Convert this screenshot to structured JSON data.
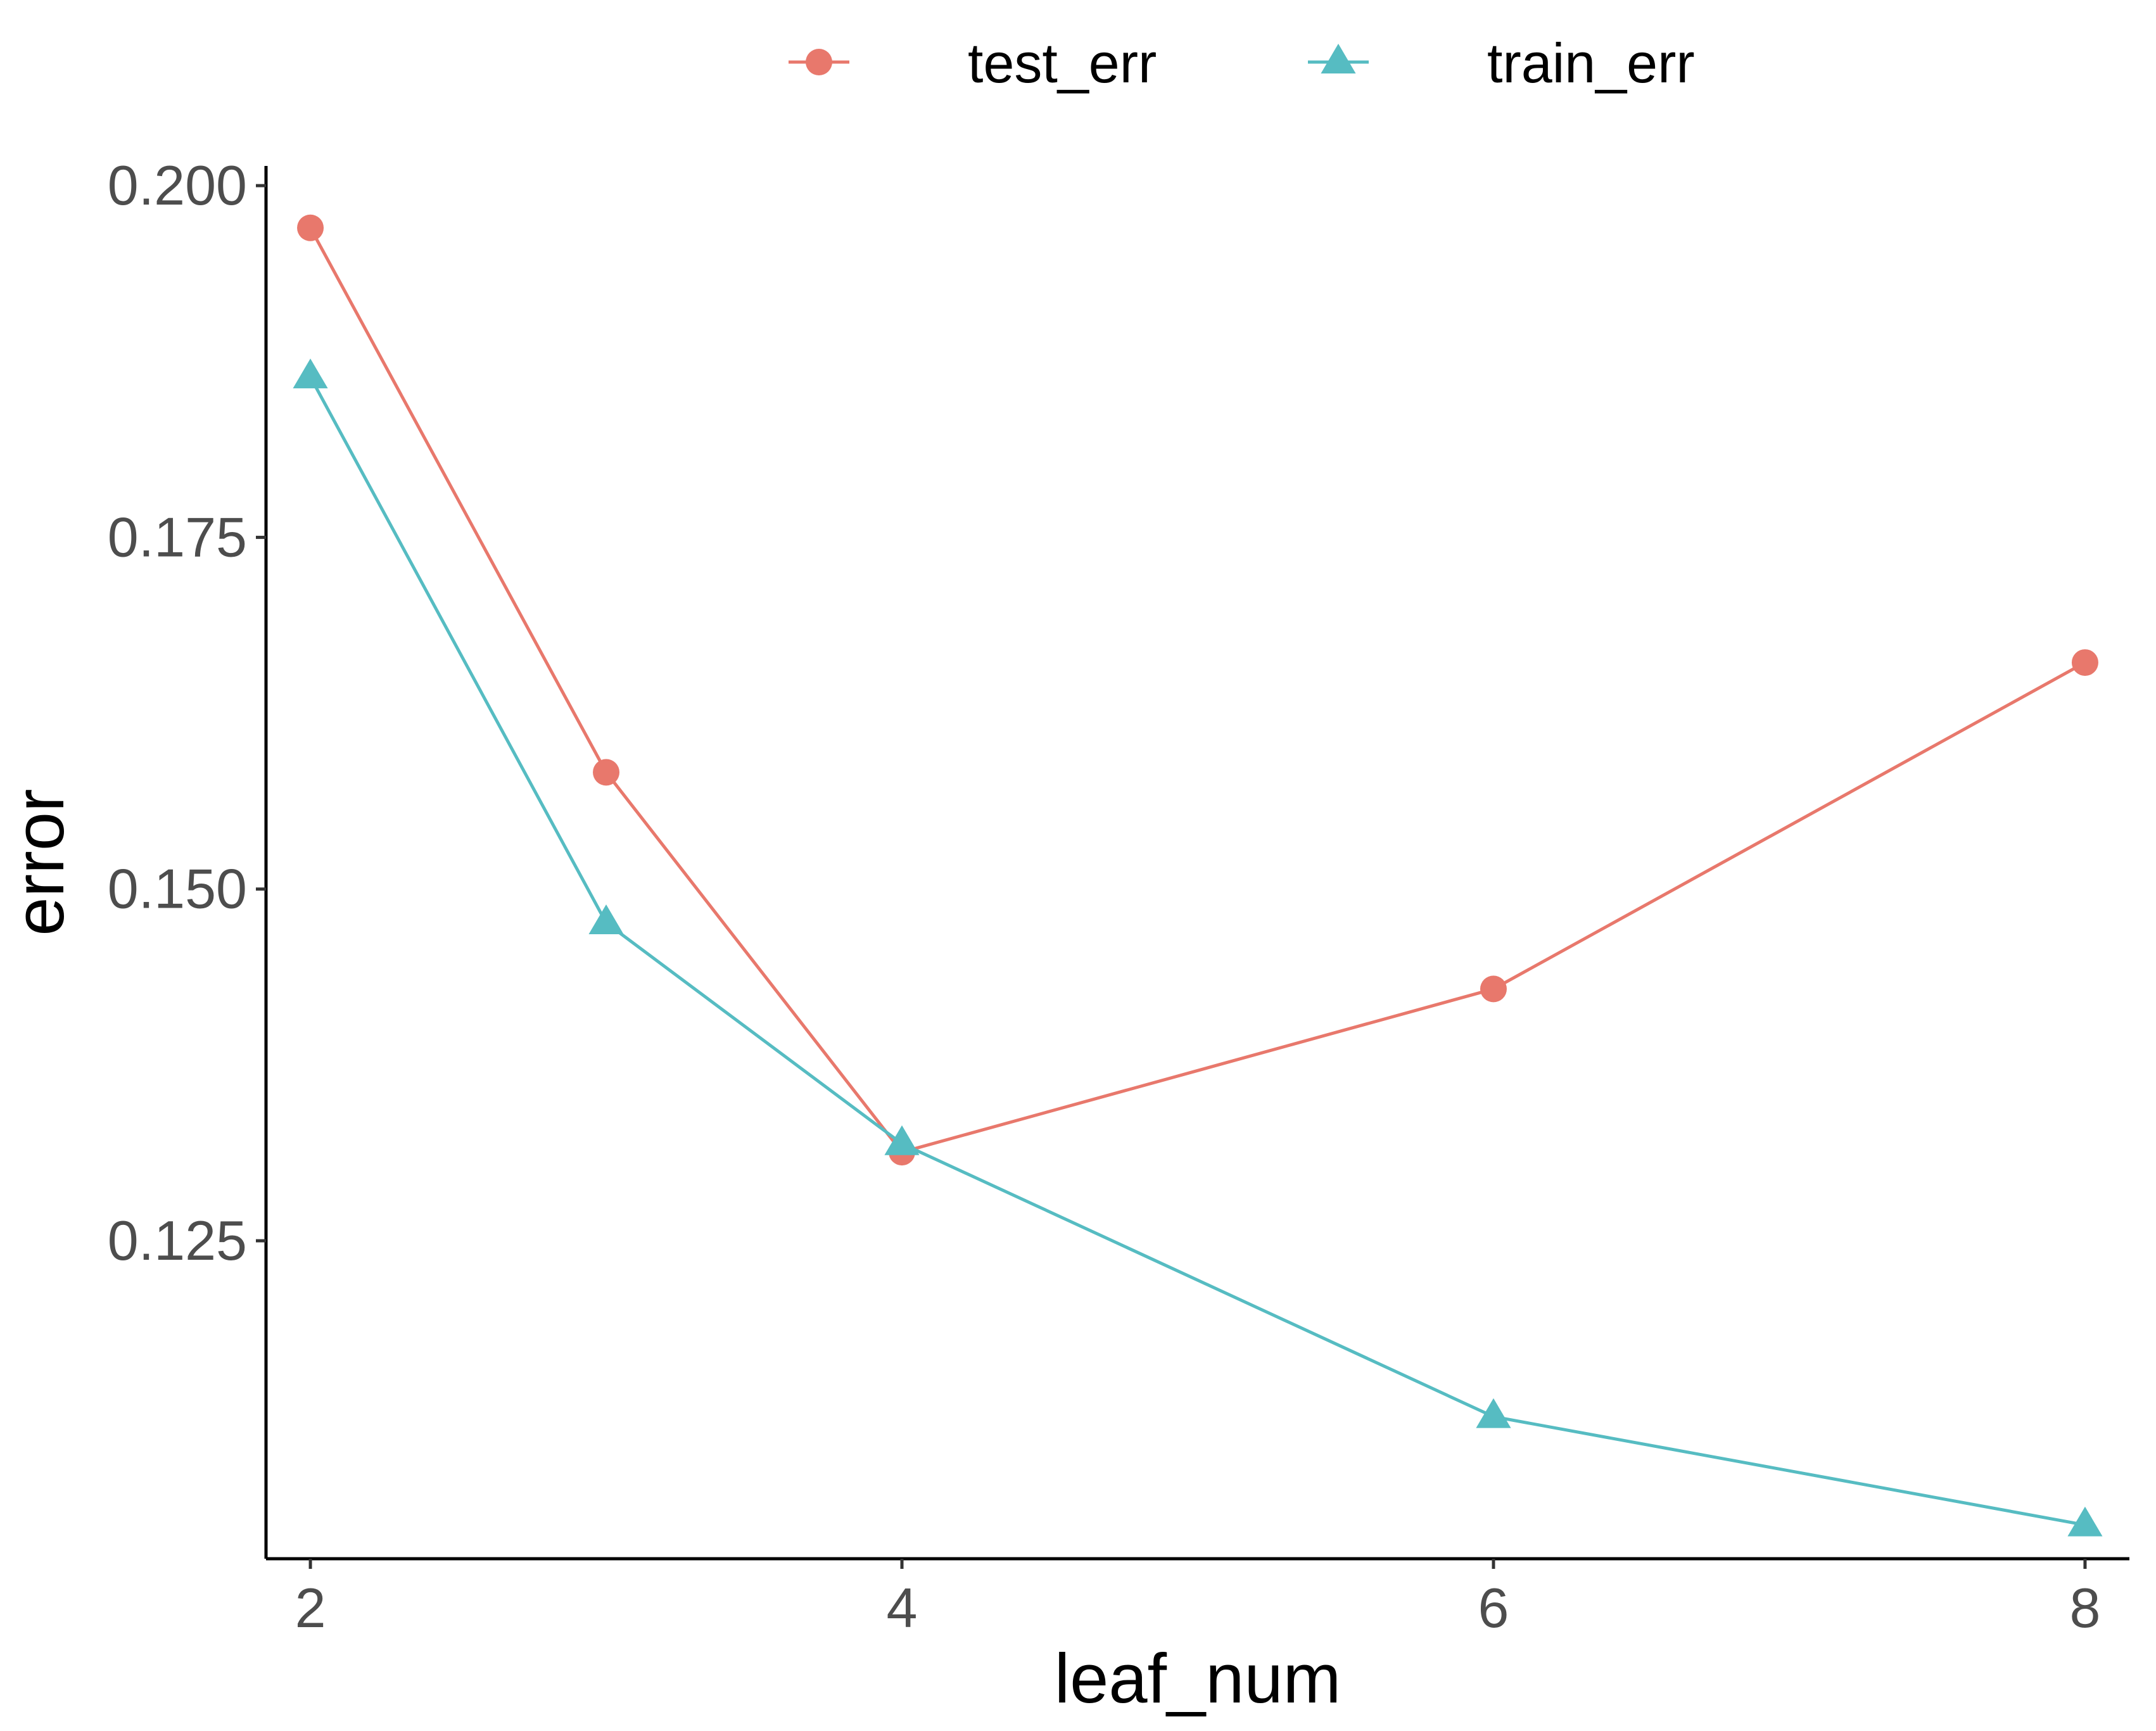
{
  "chart_data": {
    "type": "line",
    "title": "",
    "xlabel": "leaf_num",
    "ylabel": "error",
    "xlim": [
      1.85,
      8.15
    ],
    "ylim": [
      0.1024,
      0.2014
    ],
    "x_ticks": [
      2,
      4,
      6,
      8
    ],
    "x_tick_labels": [
      "2",
      "4",
      "6",
      "8"
    ],
    "y_ticks": [
      0.125,
      0.15,
      0.175,
      0.2
    ],
    "y_tick_labels": [
      "0.125",
      "0.150",
      "0.175",
      "0.200"
    ],
    "grid": false,
    "legend_position": "top",
    "x": [
      2,
      3,
      4,
      6,
      8
    ],
    "series": [
      {
        "name": "test_err",
        "marker": "circle",
        "color": "#E8786C",
        "values": [
          0.197,
          0.1583,
          0.1313,
          0.1429,
          0.1661
        ]
      },
      {
        "name": "train_err",
        "marker": "triangle",
        "color": "#56BCC2",
        "values": [
          0.1864,
          0.1476,
          0.1319,
          0.1125,
          0.1048
        ]
      }
    ]
  }
}
